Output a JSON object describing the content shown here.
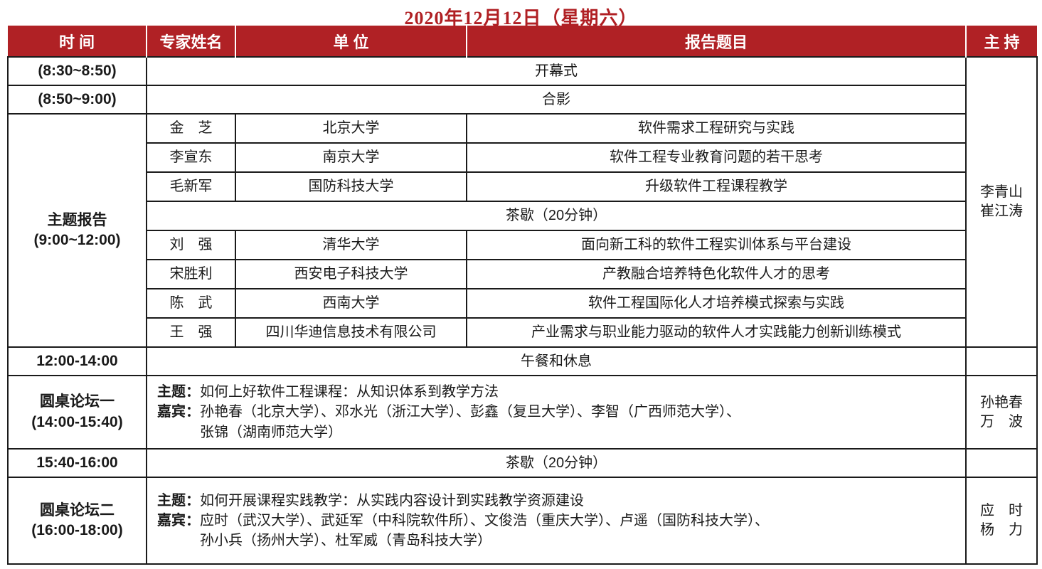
{
  "accent": "#b02125",
  "title": "2020年12月12日（星期六）",
  "table": {
    "headers": {
      "time": "时  间",
      "name": "专家姓名",
      "org": "单  位",
      "topic": "报告题目",
      "host": "主  持"
    },
    "opening": {
      "time": "(8:30~8:50)",
      "event": "开幕式"
    },
    "photo": {
      "time": "(8:50~9:00)",
      "event": "合影"
    },
    "keynote": {
      "time_line1": "主题报告",
      "time_line2": "(9:00~12:00)",
      "host_line1": "李青山",
      "host_line2": "崔江涛",
      "talks_morning": [
        {
          "name": "金　芝",
          "org": "北京大学",
          "title": "软件需求工程研究与实践"
        },
        {
          "name": "李宣东",
          "org": "南京大学",
          "title": "软件工程专业教育问题的若干思考"
        },
        {
          "name": "毛新军",
          "org": "国防科技大学",
          "title": "升级软件工程课程教学"
        }
      ],
      "break_event": "茶歇（20分钟）",
      "talks_late": [
        {
          "name": "刘　强",
          "org": "清华大学",
          "title": "面向新工科的软件工程实训体系与平台建设"
        },
        {
          "name": "宋胜利",
          "org": "西安电子科技大学",
          "title": "产教融合培养特色化软件人才的思考"
        },
        {
          "name": "陈　武",
          "org": "西南大学",
          "title": "软件工程国际化人才培养模式探索与实践"
        },
        {
          "name": "王　强",
          "org": "四川华迪信息技术有限公司",
          "title": "产业需求与职业能力驱动的软件人才实践能力创新训练模式"
        }
      ]
    },
    "lunch": {
      "time": "12:00-14:00",
      "event": "午餐和休息"
    },
    "forum1": {
      "time_line1": "圆桌论坛一",
      "time_line2": "(14:00-15:40)",
      "topic_label": "主题：",
      "topic": "如何上好软件工程课程：从知识体系到教学方法",
      "guests_label": "嘉宾：",
      "guests_line1": "孙艳春（北京大学）、邓水光（浙江大学）、彭鑫（复旦大学）、李智（广西师范大学）、",
      "guests_line2": "张锦（湖南师范大学）",
      "host_line1": "孙艳春",
      "host_line2": "万　波"
    },
    "tea": {
      "time": "15:40-16:00",
      "event": "茶歇（20分钟）"
    },
    "forum2": {
      "time_line1": "圆桌论坛二",
      "time_line2": "(16:00-18:00)",
      "topic_label": "主题：",
      "topic": "如何开展课程实践教学：从实践内容设计到实践教学资源建设",
      "guests_label": "嘉宾：",
      "guests_line1": "应时（武汉大学）、武延军（中科院软件所）、文俊浩（重庆大学）、卢遥（国防科技大学）、",
      "guests_line2": "孙小兵（扬州大学）、杜军威（青岛科技大学）",
      "host_line1": "应　时",
      "host_line2": "杨　力"
    }
  }
}
